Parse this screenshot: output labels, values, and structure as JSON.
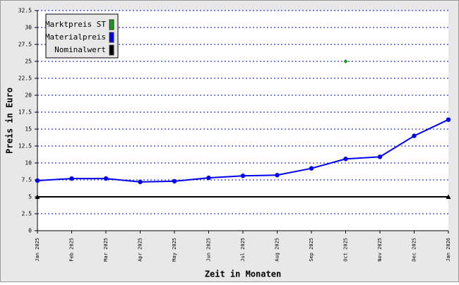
{
  "chart_data": {
    "type": "line",
    "x_label": "Zeit in Monaten",
    "y_label": "Preis in Euro",
    "categories": [
      "Jan 2025",
      "Feb 2025",
      "Mar 2025",
      "Apr 2025",
      "May 2025",
      "Jun 2025",
      "Jul 2025",
      "Aug 2025",
      "Sep 2025",
      "Oct 2025",
      "Nov 2025",
      "Dec 2025",
      "Jan 2026"
    ],
    "series": [
      {
        "name": "Marktpreis ST",
        "color": "#1a9a1a",
        "values": [
          null,
          null,
          null,
          null,
          null,
          null,
          null,
          null,
          null,
          25,
          null,
          null,
          null
        ]
      },
      {
        "name": "Materialpreis",
        "color": "#0000ee",
        "values": [
          7.4,
          7.7,
          7.7,
          7.2,
          7.3,
          7.8,
          8.1,
          8.2,
          9.2,
          10.6,
          10.9,
          14.0,
          16.4
        ]
      },
      {
        "name": "Nominalwert",
        "color": "#000000",
        "values": [
          5,
          5,
          5,
          5,
          5,
          5,
          5,
          5,
          5,
          5,
          5,
          5,
          5
        ]
      }
    ],
    "ylim": [
      0,
      32.5
    ],
    "yticks": [
      0,
      2.5,
      5,
      7.5,
      10,
      12.5,
      15,
      17.5,
      20,
      22.5,
      25,
      27.5,
      30,
      32.5
    ],
    "grid": true,
    "legend": "top-left"
  }
}
